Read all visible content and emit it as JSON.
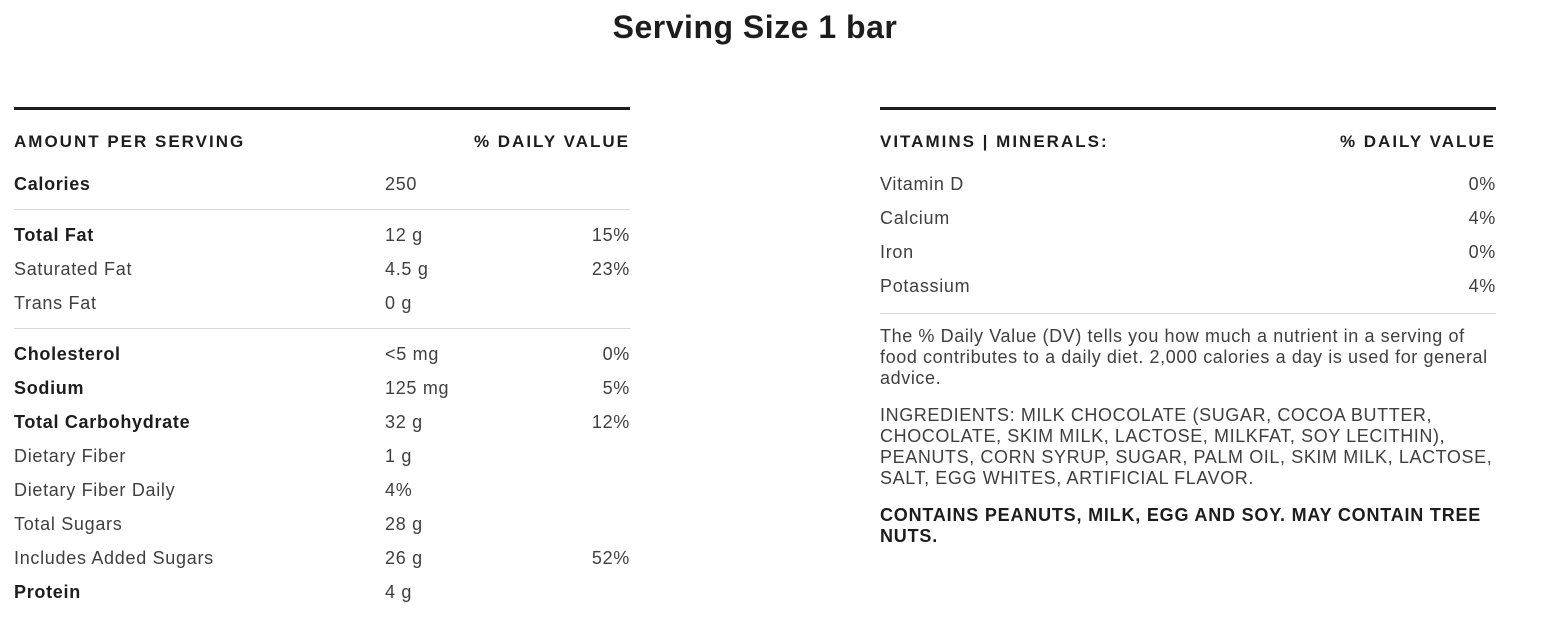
{
  "page": {
    "title": "Serving Size 1 bar"
  },
  "colors": {
    "text_strong": "#1d1d1d",
    "text_regular": "#3f3f3f",
    "divider": "#d8d8d8",
    "background": "#ffffff"
  },
  "nutrition_table": {
    "header": {
      "left": "AMOUNT PER SERVING",
      "right": "% DAILY VALUE"
    },
    "rows": [
      {
        "label": "Calories",
        "amount": "250",
        "daily_value": "",
        "bold": true,
        "divider_after": true
      },
      {
        "label": "Total Fat",
        "amount": "12 g",
        "daily_value": "15%",
        "bold": true,
        "divider_after": false
      },
      {
        "label": "Saturated Fat",
        "amount": "4.5 g",
        "daily_value": "23%",
        "bold": false,
        "divider_after": false
      },
      {
        "label": "Trans Fat",
        "amount": "0 g",
        "daily_value": "",
        "bold": false,
        "divider_after": true
      },
      {
        "label": "Cholesterol",
        "amount": "<5 mg",
        "daily_value": "0%",
        "bold": true,
        "divider_after": false
      },
      {
        "label": "Sodium",
        "amount": "125 mg",
        "daily_value": "5%",
        "bold": true,
        "divider_after": false
      },
      {
        "label": "Total Carbohydrate",
        "amount": "32 g",
        "daily_value": "12%",
        "bold": true,
        "divider_after": false
      },
      {
        "label": "Dietary Fiber",
        "amount": "1 g",
        "daily_value": "",
        "bold": false,
        "divider_after": false
      },
      {
        "label": "Dietary Fiber Daily",
        "amount": "4%",
        "daily_value": "",
        "bold": false,
        "divider_after": false
      },
      {
        "label": "Total Sugars",
        "amount": "28 g",
        "daily_value": "",
        "bold": false,
        "divider_after": false
      },
      {
        "label": "Includes Added Sugars",
        "amount": "26 g",
        "daily_value": "52%",
        "bold": false,
        "divider_after": false
      },
      {
        "label": "Protein",
        "amount": "4 g",
        "daily_value": "",
        "bold": true,
        "divider_after": false
      }
    ]
  },
  "vitamins_table": {
    "header": {
      "left": "VITAMINS | MINERALS:",
      "right": "% DAILY VALUE"
    },
    "rows": [
      {
        "label": "Vitamin D",
        "daily_value": "0%"
      },
      {
        "label": "Calcium",
        "daily_value": "4%"
      },
      {
        "label": "Iron",
        "daily_value": "0%"
      },
      {
        "label": "Potassium",
        "daily_value": "4%"
      }
    ]
  },
  "notes": {
    "daily_value_note": "The % Daily Value (DV) tells you how much a nutrient in a serving of food contributes to a daily diet. 2,000 calories a day is used for general advice.",
    "ingredients": "INGREDIENTS: MILK CHOCOLATE (SUGAR, COCOA BUTTER, CHOCOLATE, SKIM MILK, LACTOSE, MILKFAT, SOY LECITHIN), PEANUTS, CORN SYRUP, SUGAR, PALM OIL, SKIM MILK, LACTOSE, SALT, EGG WHITES, ARTIFICIAL FLAVOR.",
    "allergens": "CONTAINS PEANUTS, MILK, EGG AND SOY. MAY CONTAIN TREE NUTS."
  }
}
